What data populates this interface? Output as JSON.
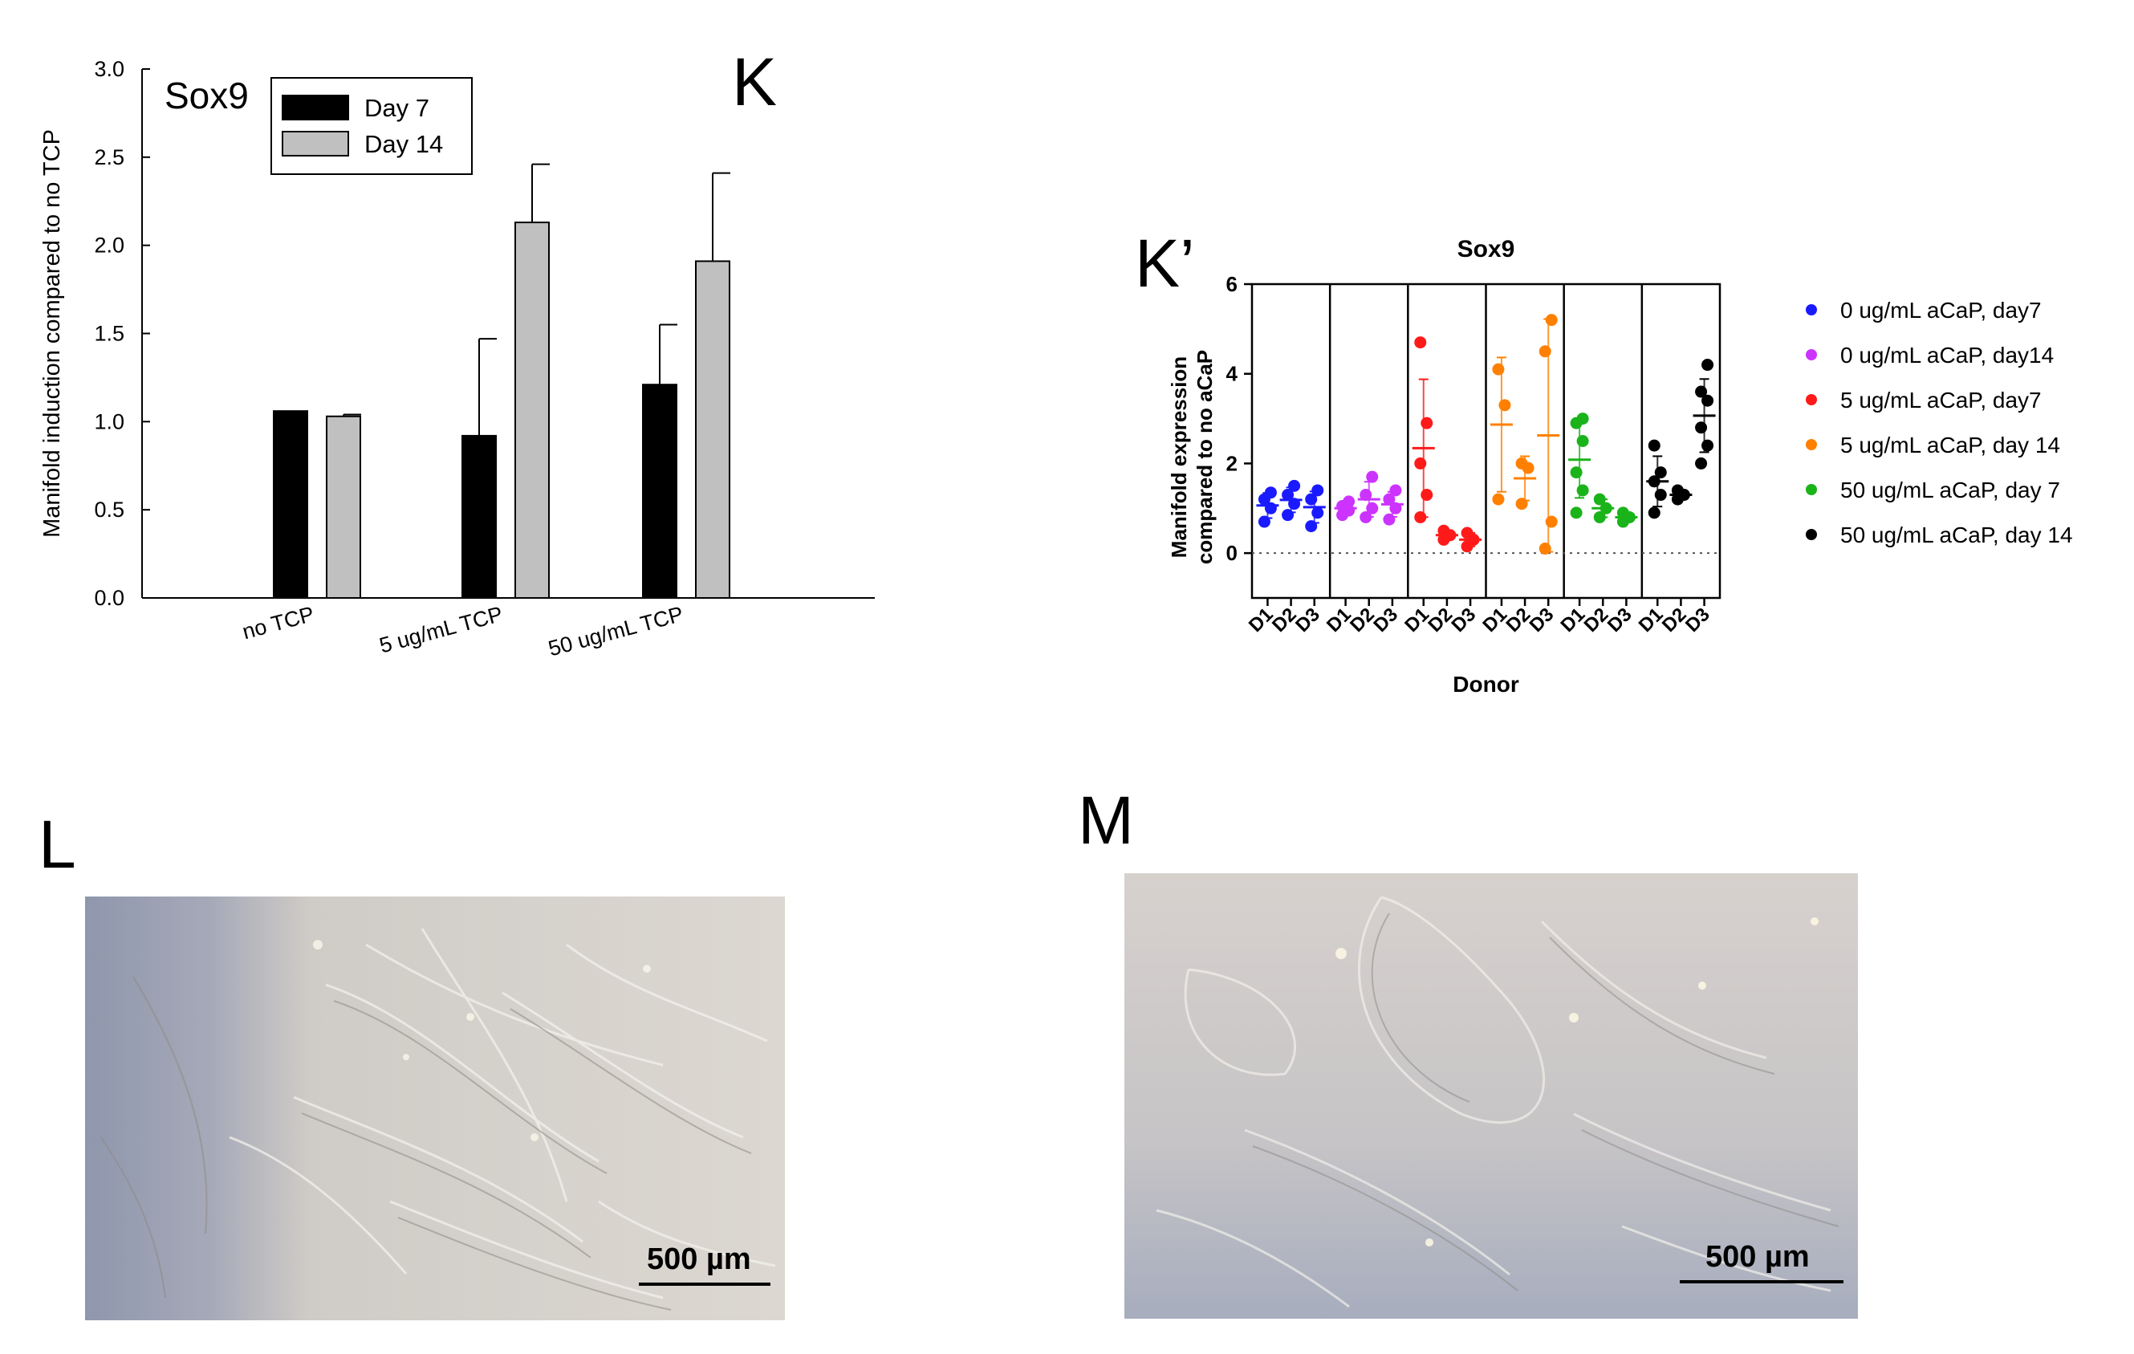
{
  "chart_data": [
    {
      "panel": "K",
      "type": "bar",
      "title": "Sox9",
      "ylabel": "Manifold induction compared to no TCP",
      "xlabel": "",
      "ylim": [
        0,
        3.0
      ],
      "yticks": [
        "0.0",
        "0.5",
        "1.0",
        "1.5",
        "2.0",
        "2.5",
        "3.0"
      ],
      "categories": [
        "no TCP",
        "5 ug/mL TCP",
        "50 ug/mL TCP"
      ],
      "series": [
        {
          "name": "Day 7",
          "color": "#000000",
          "values": [
            1.06,
            0.92,
            1.21
          ],
          "error": [
            0.0,
            0.55,
            0.34
          ]
        },
        {
          "name": "Day 14",
          "color": "#c0c0c0",
          "values": [
            1.03,
            2.13,
            1.91
          ],
          "error": [
            0.01,
            0.33,
            0.5
          ]
        }
      ],
      "legend": "top-left",
      "grid": false
    },
    {
      "panel": "K’",
      "type": "scatter",
      "title": "Sox9",
      "ylabel": "Manifold expression compared to no aCaP",
      "xlabel": "Donor",
      "ylim": [
        -1,
        6
      ],
      "yticks": [
        "0",
        "2",
        "4",
        "6"
      ],
      "x_tick_labels": [
        "D1",
        "D2",
        "D3"
      ],
      "reference_line": 0,
      "legend": "right",
      "series": [
        {
          "name": "0 ug/mL aCaP, day7",
          "color": "#1a1aff",
          "donors": [
            [
              0.7,
              1.0,
              1.2,
              1.35
            ],
            [
              0.85,
              1.1,
              1.3,
              1.5
            ],
            [
              0.6,
              0.9,
              1.2,
              1.4
            ]
          ]
        },
        {
          "name": "0 ug/mL aCaP, day14",
          "color": "#cc33ff",
          "donors": [
            [
              0.85,
              0.95,
              1.05,
              1.15
            ],
            [
              0.8,
              1.0,
              1.3,
              1.7
            ],
            [
              0.75,
              1.0,
              1.2,
              1.4
            ]
          ]
        },
        {
          "name": "5 ug/mL aCaP, day7",
          "color": "#ff1a1a",
          "donors": [
            [
              0.8,
              1.3,
              2.0,
              2.9,
              4.7
            ],
            [
              0.3,
              0.4,
              0.5
            ],
            [
              0.15,
              0.3,
              0.45
            ]
          ]
        },
        {
          "name": "5 ug/mL aCaP, day 14",
          "color": "#ff8000",
          "donors": [
            [
              1.2,
              3.3,
              4.1
            ],
            [
              1.1,
              1.9,
              2.0
            ],
            [
              0.1,
              0.7,
              4.5,
              5.2
            ]
          ]
        },
        {
          "name": "50 ug/mL aCaP, day 7",
          "color": "#1ab31a",
          "donors": [
            [
              0.9,
              1.4,
              1.8,
              2.5,
              2.9,
              3.0
            ],
            [
              0.8,
              1.0,
              1.2
            ],
            [
              0.7,
              0.8,
              0.9
            ]
          ]
        },
        {
          "name": "50 ug/mL aCaP, day 14",
          "color": "#000000",
          "donors": [
            [
              0.9,
              1.3,
              1.6,
              1.8,
              2.4
            ],
            [
              1.2,
              1.3,
              1.4
            ],
            [
              2.0,
              2.4,
              2.8,
              3.4,
              3.6,
              4.2
            ]
          ]
        }
      ]
    }
  ],
  "panels": {
    "k_label": "K",
    "kprime_label": "K’",
    "l_label": "L",
    "m_label": "M"
  },
  "images": {
    "l_scale": "500 µm",
    "m_scale": "500 µm"
  }
}
